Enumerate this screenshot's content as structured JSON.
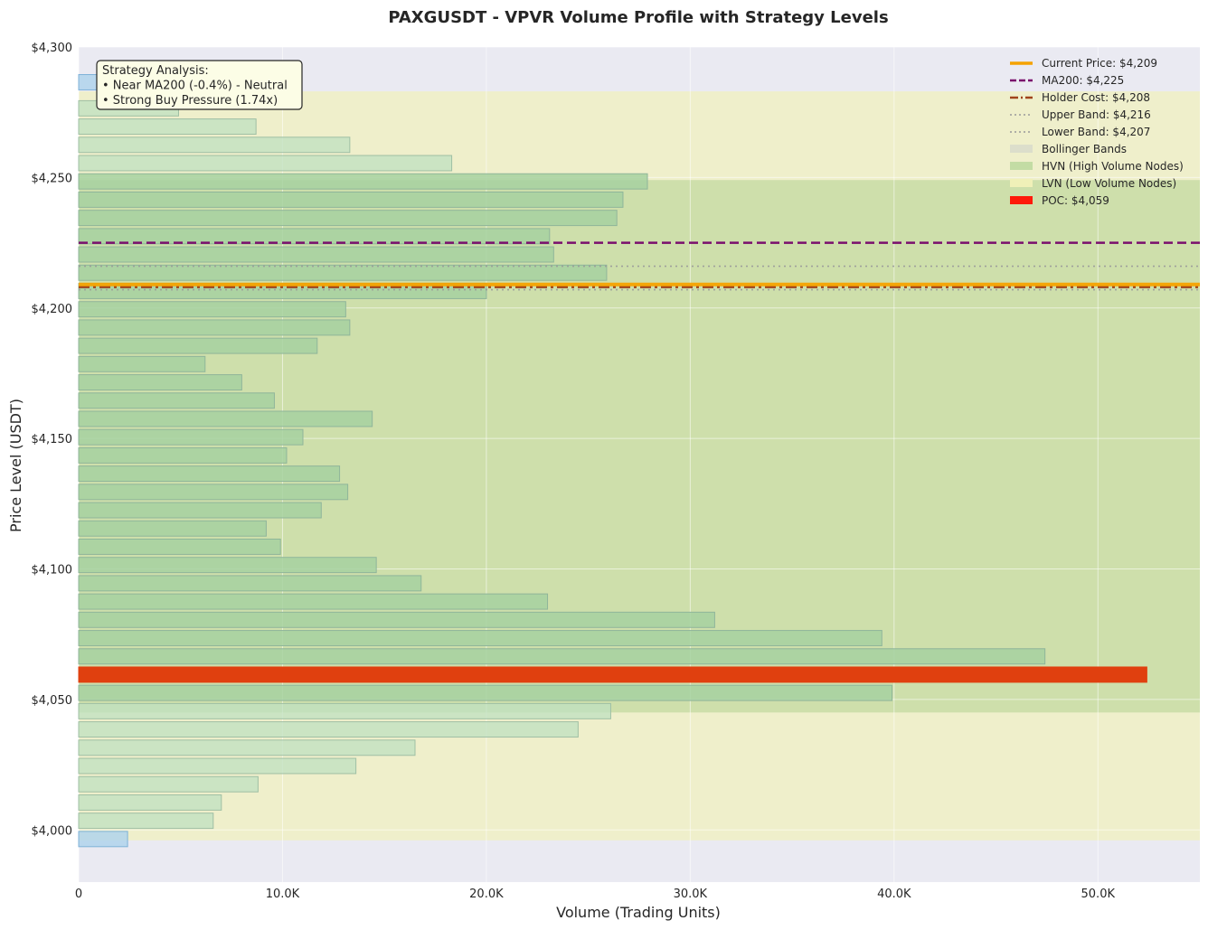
{
  "chart_data": {
    "type": "bar",
    "orientation": "horizontal",
    "title": "PAXGUSDT - VPVR Volume Profile with Strategy Levels",
    "xlabel": "Volume (Trading Units)",
    "ylabel": "Price Level (USDT)",
    "xlim": [
      0,
      55000
    ],
    "ylim": [
      3980,
      4300
    ],
    "grid": true,
    "legend_position": "top-right",
    "x_ticks": [
      {
        "value": 0,
        "label": "0"
      },
      {
        "value": 10000,
        "label": "10.0K"
      },
      {
        "value": 20000,
        "label": "20.0K"
      },
      {
        "value": 30000,
        "label": "30.0K"
      },
      {
        "value": 40000,
        "label": "40.0K"
      },
      {
        "value": 50000,
        "label": "50.0K"
      }
    ],
    "y_ticks": [
      {
        "value": 4000,
        "label": "$4,000"
      },
      {
        "value": 4050,
        "label": "$4,050"
      },
      {
        "value": 4100,
        "label": "$4,100"
      },
      {
        "value": 4150,
        "label": "$4,150"
      },
      {
        "value": 4200,
        "label": "$4,200"
      },
      {
        "value": 4250,
        "label": "$4,250"
      },
      {
        "value": 4300,
        "label": "$4,300"
      }
    ],
    "bin_height": 6.98,
    "bars": [
      {
        "price": 3996.5,
        "volume": 2400,
        "kind": "edge"
      },
      {
        "price": 4003.5,
        "volume": 6600,
        "kind": "lvn"
      },
      {
        "price": 4010.5,
        "volume": 7000,
        "kind": "lvn"
      },
      {
        "price": 4017.5,
        "volume": 8800,
        "kind": "lvn"
      },
      {
        "price": 4024.5,
        "volume": 13600,
        "kind": "lvn"
      },
      {
        "price": 4031.5,
        "volume": 16500,
        "kind": "lvn"
      },
      {
        "price": 4038.5,
        "volume": 24500,
        "kind": "lvn"
      },
      {
        "price": 4045.5,
        "volume": 26100,
        "kind": "lvn"
      },
      {
        "price": 4052.5,
        "volume": 39900,
        "kind": "hvn"
      },
      {
        "price": 4059.5,
        "volume": 52400,
        "kind": "poc"
      },
      {
        "price": 4066.5,
        "volume": 47400,
        "kind": "hvn"
      },
      {
        "price": 4073.5,
        "volume": 39400,
        "kind": "hvn"
      },
      {
        "price": 4080.5,
        "volume": 31200,
        "kind": "hvn"
      },
      {
        "price": 4087.5,
        "volume": 23000,
        "kind": "hvn"
      },
      {
        "price": 4094.5,
        "volume": 16800,
        "kind": "hvn"
      },
      {
        "price": 4101.5,
        "volume": 14600,
        "kind": "hvn"
      },
      {
        "price": 4108.5,
        "volume": 9900,
        "kind": "hvn"
      },
      {
        "price": 4115.5,
        "volume": 9200,
        "kind": "hvn"
      },
      {
        "price": 4122.5,
        "volume": 11900,
        "kind": "hvn"
      },
      {
        "price": 4129.5,
        "volume": 13200,
        "kind": "hvn"
      },
      {
        "price": 4136.5,
        "volume": 12800,
        "kind": "hvn"
      },
      {
        "price": 4143.5,
        "volume": 10200,
        "kind": "hvn"
      },
      {
        "price": 4150.5,
        "volume": 11000,
        "kind": "hvn"
      },
      {
        "price": 4157.5,
        "volume": 14400,
        "kind": "hvn"
      },
      {
        "price": 4164.5,
        "volume": 9600,
        "kind": "hvn"
      },
      {
        "price": 4171.5,
        "volume": 8000,
        "kind": "hvn"
      },
      {
        "price": 4178.5,
        "volume": 6200,
        "kind": "hvn"
      },
      {
        "price": 4185.5,
        "volume": 11700,
        "kind": "hvn"
      },
      {
        "price": 4192.5,
        "volume": 13300,
        "kind": "hvn"
      },
      {
        "price": 4199.5,
        "volume": 13100,
        "kind": "hvn"
      },
      {
        "price": 4206.5,
        "volume": 20000,
        "kind": "hvn"
      },
      {
        "price": 4213.5,
        "volume": 25900,
        "kind": "hvn"
      },
      {
        "price": 4220.5,
        "volume": 23300,
        "kind": "hvn"
      },
      {
        "price": 4227.5,
        "volume": 23100,
        "kind": "hvn"
      },
      {
        "price": 4234.5,
        "volume": 26400,
        "kind": "hvn"
      },
      {
        "price": 4241.5,
        "volume": 26700,
        "kind": "hvn"
      },
      {
        "price": 4248.5,
        "volume": 27900,
        "kind": "hvn"
      },
      {
        "price": 4255.5,
        "volume": 18300,
        "kind": "lvn"
      },
      {
        "price": 4262.5,
        "volume": 13300,
        "kind": "lvn"
      },
      {
        "price": 4269.5,
        "volume": 8700,
        "kind": "lvn"
      },
      {
        "price": 4276.5,
        "volume": 4900,
        "kind": "lvn"
      },
      {
        "price": 4283.5,
        "volume": 0,
        "kind": "lvn"
      },
      {
        "price": 4286.5,
        "volume": 900,
        "kind": "edge"
      }
    ],
    "zones": [
      {
        "kind": "lvn",
        "price_from": 3996,
        "price_to": 4283
      },
      {
        "kind": "hvn",
        "price_from": 4045,
        "price_to": 4249
      }
    ],
    "levels": [
      {
        "name": "Current Price",
        "value": 4209,
        "label": "Current Price: $4,209",
        "color": "#f5a200",
        "style": "solid-thick"
      },
      {
        "name": "MA200",
        "value": 4225,
        "label": "MA200: $4,225",
        "color": "#7a0f6d",
        "style": "dashed"
      },
      {
        "name": "Holder Cost",
        "value": 4208,
        "label": "Holder Cost: $4,208",
        "color": "#a0431b",
        "style": "dashdot"
      },
      {
        "name": "Upper Band",
        "value": 4216,
        "label": "Upper Band: $4,216",
        "color": "#999999",
        "style": "dotted"
      },
      {
        "name": "Lower Band",
        "value": 4207,
        "label": "Lower Band: $4,207",
        "color": "#999999",
        "style": "dotted"
      }
    ],
    "poc": {
      "value": 4059,
      "label": "POC: $4,059",
      "color": "#e0400f"
    },
    "legend": [
      {
        "label": "Current Price: $4,209",
        "swatch": "line",
        "color": "#f5a200"
      },
      {
        "label": "MA200: $4,225",
        "swatch": "dashed",
        "color": "#7a0f6d"
      },
      {
        "label": "Holder Cost: $4,208",
        "swatch": "dashdot",
        "color": "#a0431b"
      },
      {
        "label": "Upper Band: $4,216",
        "swatch": "dotted",
        "color": "#999999"
      },
      {
        "label": "Lower Band: $4,207",
        "swatch": "dotted",
        "color": "#999999"
      },
      {
        "label": "Bollinger Bands",
        "swatch": "patch",
        "color": "#d9dccb"
      },
      {
        "label": "HVN (High Volume Nodes)",
        "swatch": "patch",
        "color": "#c3dca4"
      },
      {
        "label": "LVN (Low Volume Nodes)",
        "swatch": "patch",
        "color": "#f0f0b8"
      },
      {
        "label": "POC: $4,059",
        "swatch": "patch",
        "color": "#ff1a0a"
      }
    ],
    "annotation": {
      "lines": [
        "Strategy Analysis:",
        "• Near MA200 (-0.4%) - Neutral",
        "• Strong Buy Pressure (1.74x)"
      ]
    }
  },
  "colors": {
    "plot_background": "#eaeaf2",
    "lvn_zone": "#f0f0c0",
    "hvn_zone": "#c8dca6",
    "bar_hvn": "#a6d1a0",
    "bar_lvn": "#bfe0c0",
    "bar_edge": "#b0d4ec",
    "annotation_fill": "#fcfde6"
  }
}
